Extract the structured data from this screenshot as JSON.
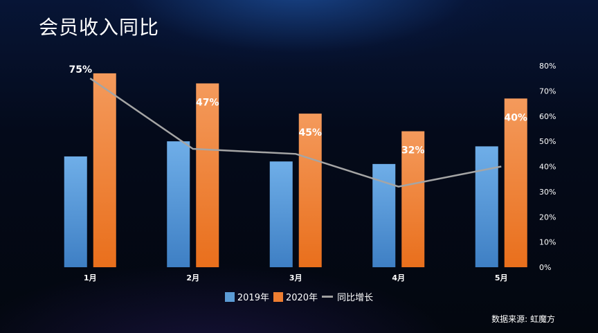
{
  "title": "会员收入同比",
  "source": "数据来源: 虹魔方",
  "chart_data": {
    "type": "bar",
    "categories": [
      "1月",
      "2月",
      "3月",
      "4月",
      "5月"
    ],
    "series": [
      {
        "name": "2019年",
        "kind": "bar",
        "color": "#5b9bd5",
        "values": [
          44,
          50,
          42,
          41,
          48
        ]
      },
      {
        "name": "2020年",
        "kind": "bar",
        "color": "#ed7d31",
        "values": [
          77,
          73,
          61,
          54,
          67
        ]
      },
      {
        "name": "同比增长",
        "kind": "line",
        "axis": "right",
        "color": "#a5a5a5",
        "values": [
          75,
          47,
          45,
          32,
          40
        ],
        "labels": [
          "75%",
          "47%",
          "45%",
          "32%",
          "40%"
        ]
      }
    ],
    "y_left_range": [
      0,
      80
    ],
    "y_right_range": [
      0,
      80
    ],
    "y_right_ticks": [
      "0%",
      "10%",
      "20%",
      "30%",
      "40%",
      "50%",
      "60%",
      "70%",
      "80%"
    ],
    "legend_position": "bottom",
    "grid": false
  }
}
